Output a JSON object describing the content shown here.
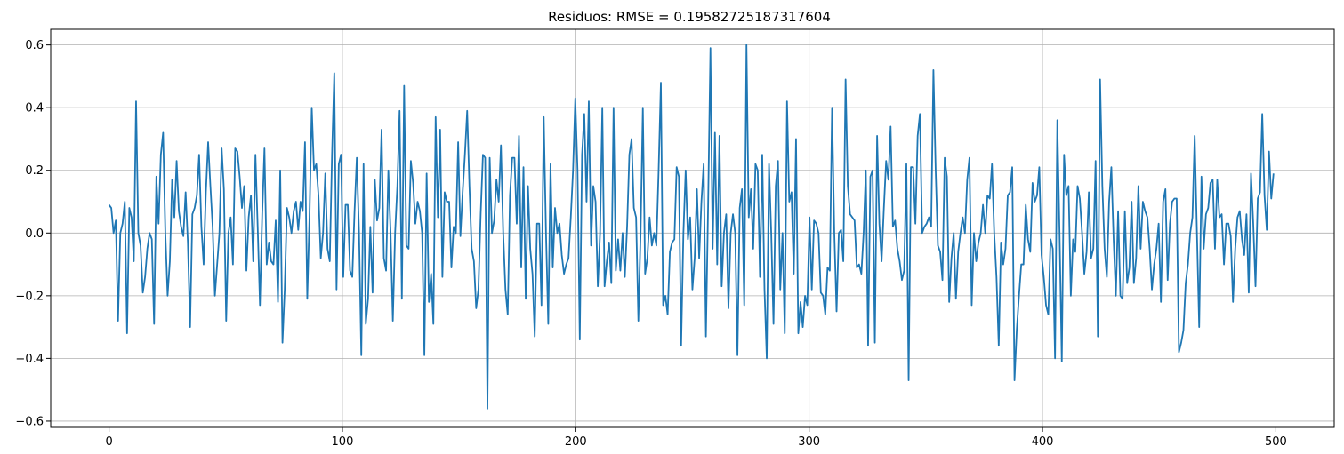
{
  "chart_data": {
    "type": "line",
    "title": "Residuos: RMSE = 0.19582725187317604",
    "xlabel": "",
    "ylabel": "",
    "xlim": [
      -25,
      525
    ],
    "ylim": [
      -0.62,
      0.65
    ],
    "xticks": [
      0,
      100,
      200,
      300,
      400,
      500
    ],
    "yticks": [
      -0.6,
      -0.4,
      -0.2,
      0.0,
      0.2,
      0.4,
      0.6
    ],
    "xtick_labels": [
      "0",
      "100",
      "200",
      "300",
      "400",
      "500"
    ],
    "ytick_labels": [
      "−0.6",
      "−0.4",
      "−0.2",
      "0.0",
      "0.2",
      "0.4",
      "0.6"
    ],
    "grid": true,
    "colors": {
      "line": "#1f77b4",
      "grid": "#b0b0b0",
      "axes": "#000000"
    },
    "series": [
      {
        "values": [
          0.09,
          0.08,
          0.0,
          0.04,
          -0.28,
          0.0,
          0.03,
          0.1,
          -0.32,
          0.08,
          0.05,
          -0.09,
          0.42,
          0.0,
          -0.04,
          -0.19,
          -0.14,
          -0.05,
          0.0,
          -0.02,
          -0.29,
          0.18,
          0.03,
          0.25,
          0.32,
          0.0,
          -0.2,
          -0.09,
          0.17,
          0.05,
          0.23,
          0.07,
          0.02,
          -0.01,
          0.13,
          -0.03,
          -0.3,
          0.06,
          0.08,
          0.12,
          0.25,
          0.02,
          -0.1,
          0.13,
          0.29,
          0.15,
          0.02,
          -0.2,
          -0.1,
          0.0,
          0.27,
          0.14,
          -0.28,
          0.0,
          0.05,
          -0.1,
          0.27,
          0.26,
          0.18,
          0.08,
          0.15,
          -0.12,
          0.05,
          0.12,
          -0.09,
          0.25,
          0.02,
          -0.23,
          0.06,
          0.27,
          -0.1,
          -0.03,
          -0.09,
          -0.1,
          0.04,
          -0.22,
          0.2,
          -0.35,
          -0.18,
          0.08,
          0.05,
          0.0,
          0.07,
          0.1,
          0.01,
          0.1,
          0.07,
          0.29,
          -0.21,
          0.05,
          0.4,
          0.2,
          0.22,
          0.12,
          -0.08,
          0.0,
          0.19,
          -0.05,
          -0.09,
          0.25,
          0.51,
          -0.18,
          0.22,
          0.25,
          -0.14,
          0.09,
          0.09,
          -0.12,
          -0.14,
          0.07,
          0.24,
          0.0,
          -0.39,
          0.22,
          -0.29,
          -0.21,
          0.02,
          -0.19,
          0.17,
          0.04,
          0.08,
          0.33,
          -0.08,
          -0.12,
          0.2,
          0.0,
          -0.28,
          0.0,
          0.15,
          0.39,
          -0.21,
          0.47,
          -0.04,
          -0.05,
          0.23,
          0.16,
          0.03,
          0.1,
          0.07,
          0.0,
          -0.39,
          0.19,
          -0.22,
          -0.13,
          -0.29,
          0.37,
          0.05,
          0.33,
          -0.14,
          0.13,
          0.1,
          0.1,
          -0.11,
          0.02,
          0.0,
          0.29,
          -0.01,
          0.13,
          0.25,
          0.39,
          0.15,
          -0.05,
          -0.09,
          -0.24,
          -0.18,
          0.06,
          0.25,
          0.24,
          -0.56,
          0.24,
          0.0,
          0.04,
          0.17,
          0.1,
          0.28,
          0.0,
          -0.18,
          -0.26,
          0.12,
          0.24,
          0.24,
          0.03,
          0.31,
          -0.11,
          0.21,
          -0.21,
          0.15,
          -0.05,
          -0.13,
          -0.33,
          0.03,
          0.03,
          -0.23,
          0.37,
          0.0,
          -0.29,
          0.22,
          -0.11,
          0.08,
          0.0,
          0.03,
          -0.07,
          -0.13,
          -0.1,
          -0.08,
          0.05,
          0.2,
          0.43,
          0.2,
          -0.34,
          0.25,
          0.38,
          0.1,
          0.42,
          -0.04,
          0.15,
          0.1,
          -0.17,
          0.0,
          0.4,
          -0.17,
          -0.09,
          -0.03,
          -0.16,
          0.4,
          -0.12,
          -0.02,
          -0.12,
          0.0,
          -0.14,
          0.02,
          0.25,
          0.3,
          0.08,
          0.05,
          -0.28,
          0.0,
          0.4,
          -0.13,
          -0.08,
          0.05,
          -0.04,
          0.0,
          -0.04,
          0.2,
          0.48,
          -0.23,
          -0.2,
          -0.26,
          -0.06,
          -0.03,
          -0.02,
          0.21,
          0.18,
          -0.36,
          0.0,
          0.2,
          -0.02,
          0.05,
          -0.18,
          -0.08,
          0.14,
          -0.08,
          0.1,
          0.22,
          -0.33,
          0.1,
          0.59,
          -0.05,
          0.32,
          -0.1,
          0.31,
          -0.17,
          0.0,
          0.06,
          -0.24,
          0.0,
          0.06,
          0.0,
          -0.39,
          0.08,
          0.14,
          -0.23,
          0.6,
          0.05,
          0.14,
          -0.05,
          0.22,
          0.2,
          -0.14,
          0.25,
          -0.18,
          -0.4,
          0.22,
          0.0,
          -0.29,
          0.15,
          0.23,
          -0.18,
          0.0,
          -0.32,
          0.42,
          0.1,
          0.13,
          -0.13,
          0.3,
          -0.32,
          -0.22,
          -0.3,
          -0.2,
          -0.23,
          0.05,
          -0.18,
          0.04,
          0.03,
          0.0,
          -0.19,
          -0.2,
          -0.26,
          -0.11,
          -0.12,
          0.4,
          0.0,
          -0.25,
          0.0,
          0.01,
          -0.09,
          0.49,
          0.15,
          0.06,
          0.05,
          0.04,
          -0.11,
          -0.1,
          -0.13,
          0.0,
          0.2,
          -0.36,
          0.18,
          0.2,
          -0.35,
          0.31,
          0.03,
          -0.09,
          0.08,
          0.23,
          0.17,
          0.34,
          0.02,
          0.04,
          -0.05,
          -0.09,
          -0.15,
          -0.12,
          0.22,
          -0.47,
          0.21,
          0.21,
          0.03,
          0.31,
          0.38,
          0.0,
          0.02,
          0.03,
          0.05,
          0.02,
          0.52,
          0.2,
          -0.04,
          -0.06,
          -0.15,
          0.24,
          0.18,
          -0.22,
          -0.08,
          0.0,
          -0.21,
          -0.06,
          0.0,
          0.05,
          0.0,
          0.17,
          0.24,
          -0.23,
          0.0,
          -0.09,
          -0.03,
          0.0,
          0.09,
          0.0,
          0.12,
          0.11,
          0.22,
          0.0,
          -0.14,
          -0.36,
          -0.03,
          -0.1,
          -0.05,
          0.12,
          0.13,
          0.21,
          -0.47,
          -0.31,
          -0.2,
          -0.1,
          -0.1,
          0.09,
          -0.02,
          -0.06,
          0.16,
          0.1,
          0.12,
          0.21,
          -0.07,
          -0.14,
          -0.23,
          -0.26,
          -0.02,
          -0.05,
          -0.4,
          0.36,
          0.0,
          -0.41,
          0.25,
          0.12,
          0.15,
          -0.2,
          -0.02,
          -0.06,
          0.15,
          0.11,
          0.0,
          -0.13,
          -0.06,
          0.13,
          -0.08,
          -0.05,
          0.23,
          -0.33,
          0.49,
          0.15,
          -0.05,
          -0.14,
          0.1,
          0.21,
          -0.02,
          -0.2,
          0.07,
          -0.2,
          -0.21,
          0.07,
          -0.16,
          -0.11,
          0.1,
          -0.16,
          -0.08,
          0.15,
          -0.05,
          0.1,
          0.07,
          0.05,
          -0.05,
          -0.18,
          -0.1,
          -0.05,
          0.03,
          -0.22,
          0.1,
          0.14,
          -0.15,
          0.03,
          0.1,
          0.11,
          0.11,
          -0.38,
          -0.35,
          -0.31,
          -0.16,
          -0.1,
          0.0,
          0.05,
          0.31,
          0.0,
          -0.3,
          0.18,
          -0.05,
          0.06,
          0.08,
          0.16,
          0.17,
          -0.05,
          0.17,
          0.05,
          0.06,
          -0.1,
          0.03,
          0.03,
          -0.01,
          -0.22,
          -0.05,
          0.05,
          0.07,
          -0.02,
          -0.07,
          0.06,
          -0.19,
          0.19,
          0.03,
          -0.17,
          0.11,
          0.13,
          0.38,
          0.12,
          0.01,
          0.26,
          0.11,
          0.19
        ]
      }
    ]
  }
}
